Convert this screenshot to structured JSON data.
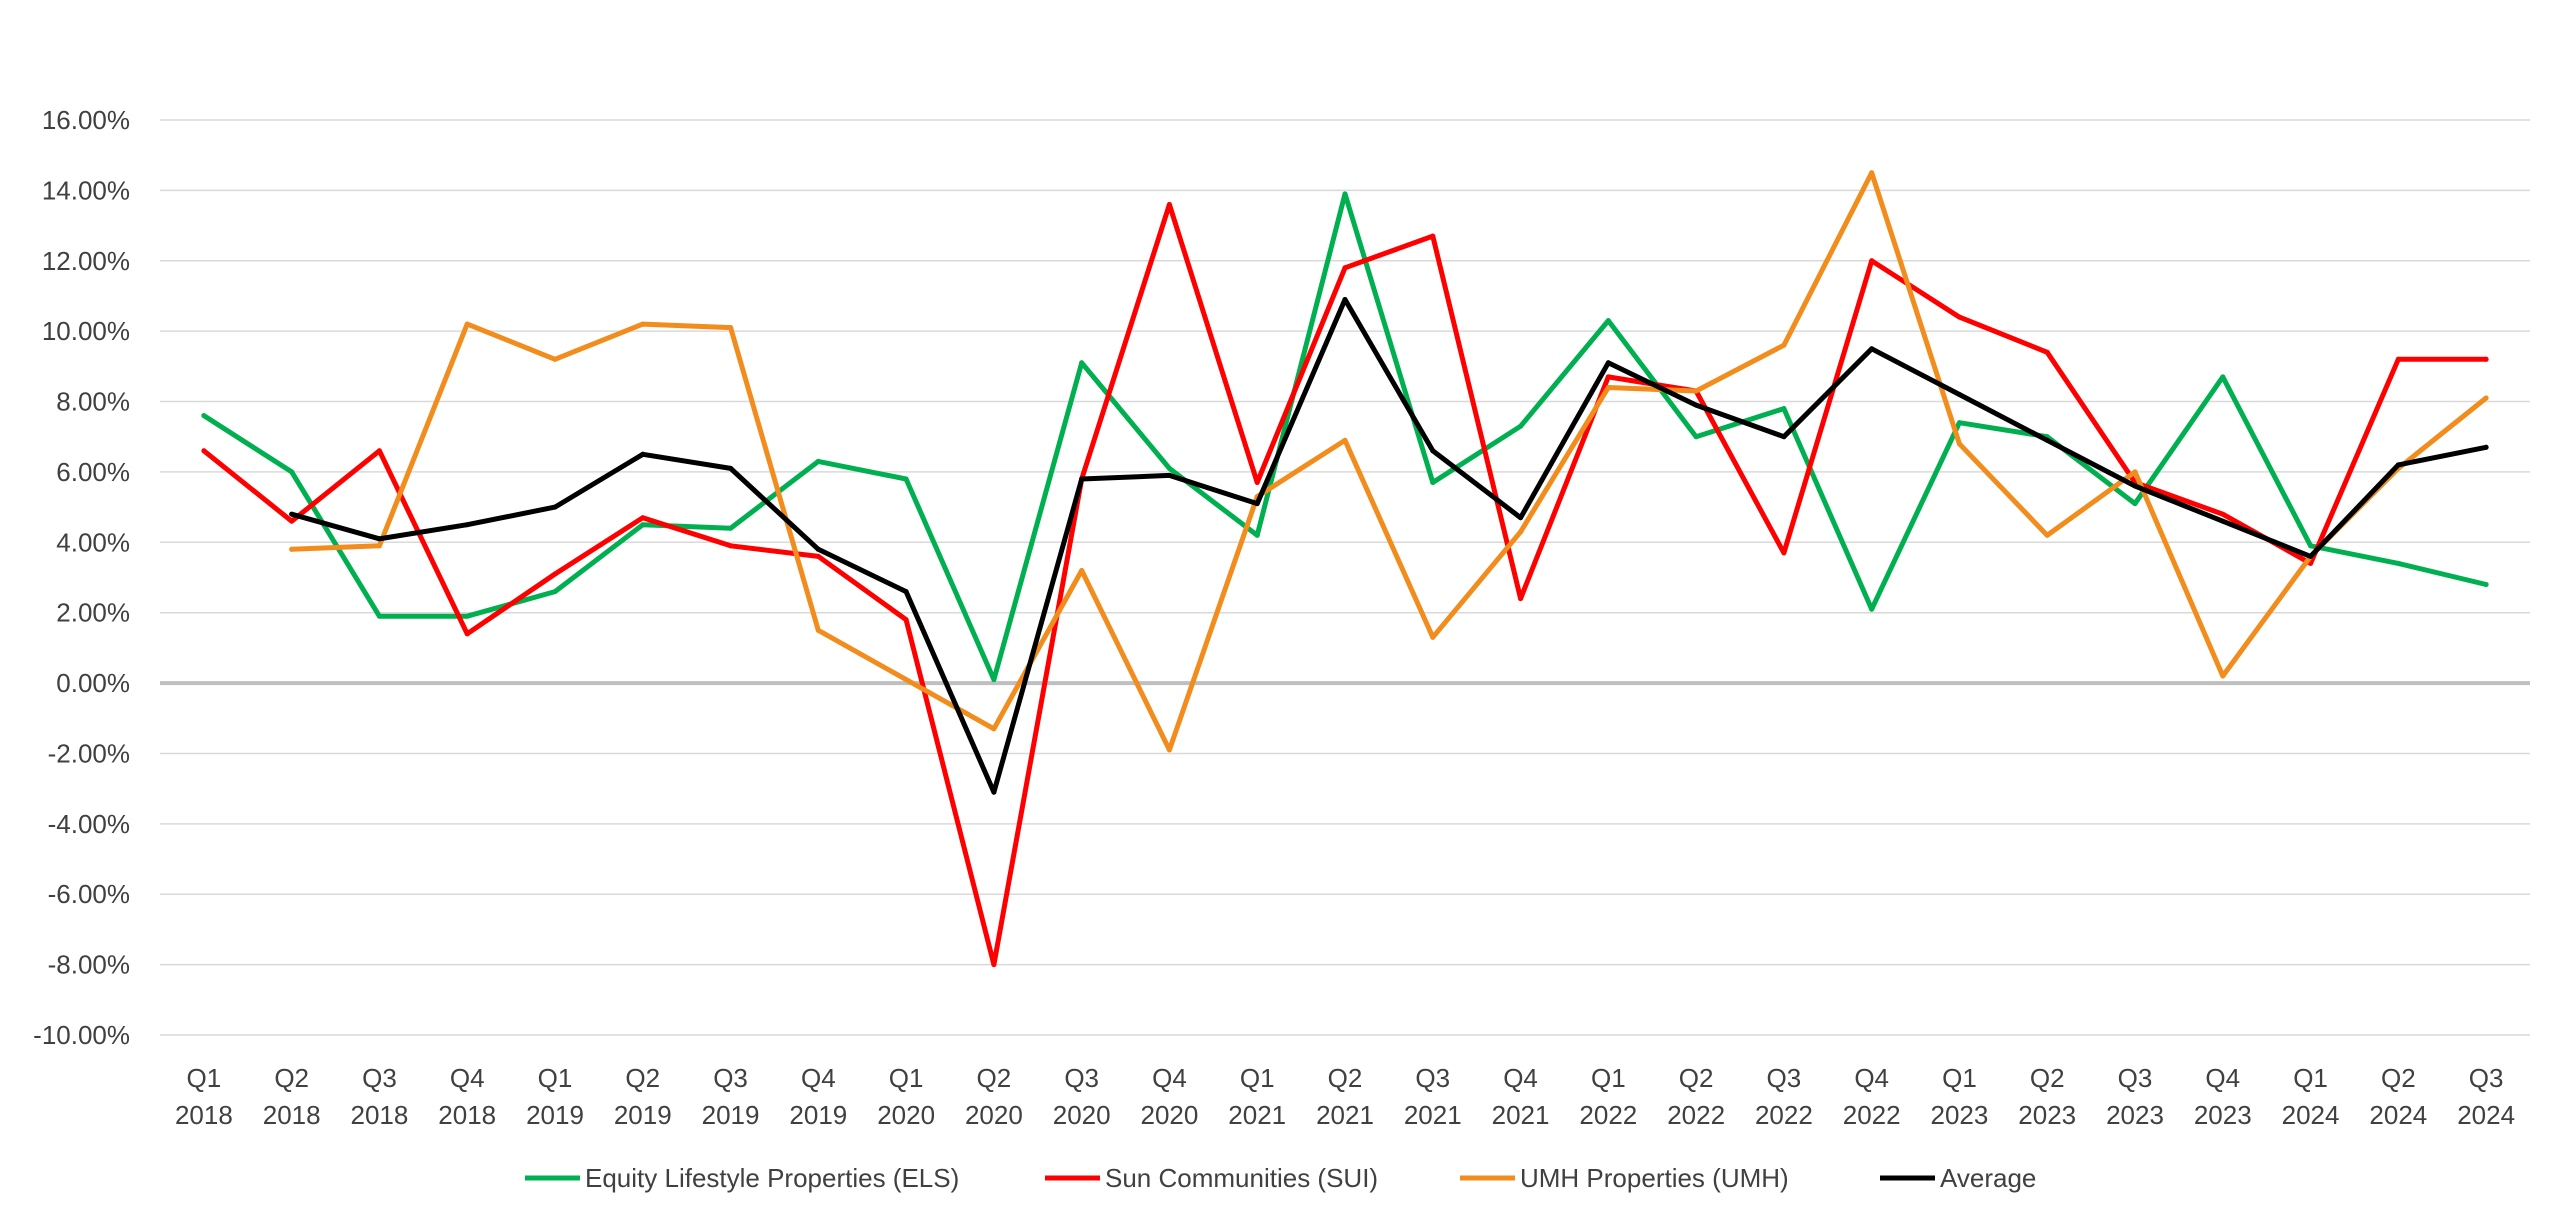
{
  "chart_data": {
    "type": "line",
    "title": "",
    "xlabel": "",
    "ylabel": "",
    "ylim": [
      -0.1,
      0.16
    ],
    "y_tick_step": 0.02,
    "y_tick_labels": [
      "16.00%",
      "14.00%",
      "12.00%",
      "10.00%",
      "8.00%",
      "6.00%",
      "4.00%",
      "2.00%",
      "0.00%",
      "-2.00%",
      "-4.00%",
      "-6.00%",
      "-8.00%",
      "-10.00%"
    ],
    "grid": true,
    "legend_position": "bottom",
    "categories": [
      [
        "Q1",
        "2018"
      ],
      [
        "Q2",
        "2018"
      ],
      [
        "Q3",
        "2018"
      ],
      [
        "Q4",
        "2018"
      ],
      [
        "Q1",
        "2019"
      ],
      [
        "Q2",
        "2019"
      ],
      [
        "Q3",
        "2019"
      ],
      [
        "Q4",
        "2019"
      ],
      [
        "Q1",
        "2020"
      ],
      [
        "Q2",
        "2020"
      ],
      [
        "Q3",
        "2020"
      ],
      [
        "Q4",
        "2020"
      ],
      [
        "Q1",
        "2021"
      ],
      [
        "Q2",
        "2021"
      ],
      [
        "Q3",
        "2021"
      ],
      [
        "Q4",
        "2021"
      ],
      [
        "Q1",
        "2022"
      ],
      [
        "Q2",
        "2022"
      ],
      [
        "Q3",
        "2022"
      ],
      [
        "Q4",
        "2022"
      ],
      [
        "Q1",
        "2023"
      ],
      [
        "Q2",
        "2023"
      ],
      [
        "Q3",
        "2023"
      ],
      [
        "Q4",
        "2023"
      ],
      [
        "Q1",
        "2024"
      ],
      [
        "Q2",
        "2024"
      ],
      [
        "Q3",
        "2024"
      ]
    ],
    "series": [
      {
        "name": "Equity Lifestyle Properties (ELS)",
        "color": "#00b050",
        "values": [
          0.076,
          0.06,
          0.019,
          0.019,
          0.026,
          0.045,
          0.044,
          0.063,
          0.058,
          0.001,
          0.091,
          0.061,
          0.042,
          0.139,
          0.057,
          0.073,
          0.103,
          0.07,
          0.078,
          0.021,
          0.074,
          0.07,
          0.051,
          0.087,
          0.039,
          0.034,
          0.028
        ]
      },
      {
        "name": "Sun Communities (SUI)",
        "color": "#ff0000",
        "values": [
          0.066,
          0.046,
          0.066,
          0.014,
          0.031,
          0.047,
          0.039,
          0.036,
          0.018,
          -0.08,
          0.058,
          0.136,
          0.057,
          0.118,
          0.127,
          0.024,
          0.087,
          0.083,
          0.037,
          0.12,
          0.104,
          0.094,
          0.057,
          0.048,
          0.034,
          0.092,
          0.092
        ]
      },
      {
        "name": "UMH Properties (UMH)",
        "color": "#f28c1c",
        "values": [
          null,
          0.038,
          0.039,
          0.102,
          0.092,
          0.102,
          0.101,
          0.015,
          0.001,
          -0.013,
          0.032,
          -0.019,
          0.053,
          0.069,
          0.013,
          0.043,
          0.084,
          0.083,
          0.096,
          0.145,
          0.068,
          0.042,
          0.06,
          0.002,
          0.036,
          0.061,
          0.081
        ]
      },
      {
        "name": "Average",
        "color": "#000000",
        "values": [
          null,
          0.048,
          0.041,
          0.045,
          0.05,
          0.065,
          0.061,
          0.038,
          0.026,
          -0.031,
          0.058,
          0.059,
          0.051,
          0.109,
          0.066,
          0.047,
          0.091,
          0.079,
          0.07,
          0.095,
          0.082,
          0.069,
          0.056,
          0.046,
          0.036,
          0.062,
          0.067
        ]
      }
    ],
    "colors": {
      "grid": "#d9d9d9",
      "zero_line": "#bfbfbf",
      "text": "#404040"
    }
  }
}
